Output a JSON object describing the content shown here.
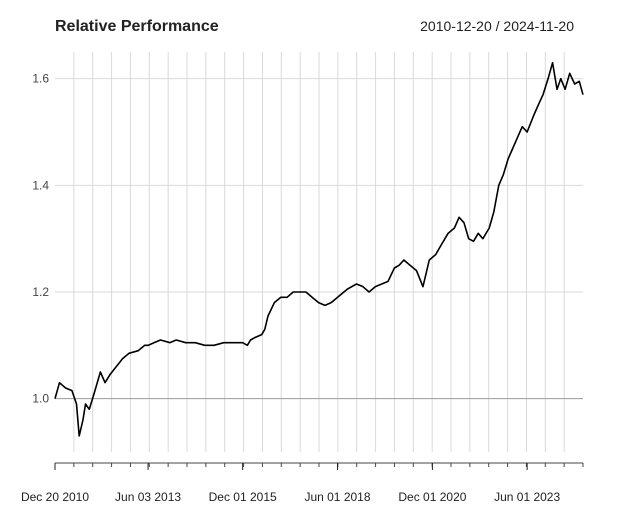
{
  "chart_data": {
    "type": "line",
    "title": "Relative Performance",
    "date_range_label": "2010-12-20 / 2024-11-20",
    "xlim": [
      "2010-12-20",
      "2024-11-20"
    ],
    "ylim": [
      0.9,
      1.65
    ],
    "y_ticks": [
      1.0,
      1.2,
      1.4,
      1.6
    ],
    "y_tick_labels": [
      "1.0",
      "1.2",
      "1.4",
      "1.6"
    ],
    "x_tick_labels": [
      "Dec 20 2010",
      "Jun 03 2013",
      "Dec 01 2015",
      "Jun 01 2018",
      "Dec 01 2020",
      "Jun 01 2023"
    ],
    "x_tick_dates": [
      "2010-12-20",
      "2013-06-03",
      "2015-12-01",
      "2018-06-01",
      "2020-12-01",
      "2023-06-01"
    ],
    "reference_line": 1.0,
    "grid": true,
    "line_color": "#000000",
    "series": [
      {
        "x": [
          "2010-12-20",
          "2011-02-01",
          "2011-04-01",
          "2011-06-01",
          "2011-07-15",
          "2011-08-10",
          "2011-09-15",
          "2011-10-10",
          "2011-11-15",
          "2012-01-01",
          "2012-03-01",
          "2012-04-15",
          "2012-06-01",
          "2012-08-01",
          "2012-10-01",
          "2012-12-01",
          "2013-03-01",
          "2013-05-01",
          "2013-06-03",
          "2013-08-01",
          "2013-10-01",
          "2014-01-01",
          "2014-03-01",
          "2014-06-01",
          "2014-09-01",
          "2014-12-01",
          "2015-03-01",
          "2015-06-01",
          "2015-09-01",
          "2015-12-01",
          "2016-01-15",
          "2016-02-15",
          "2016-04-01",
          "2016-06-01",
          "2016-07-01",
          "2016-08-01",
          "2016-10-01",
          "2016-12-01",
          "2017-02-01",
          "2017-04-01",
          "2017-06-01",
          "2017-08-01",
          "2017-10-01",
          "2017-12-01",
          "2018-02-01",
          "2018-04-01",
          "2018-06-01",
          "2018-09-01",
          "2018-12-01",
          "2019-02-01",
          "2019-04-01",
          "2019-06-01",
          "2019-08-01",
          "2019-10-01",
          "2019-12-01",
          "2020-01-15",
          "2020-03-01",
          "2020-05-01",
          "2020-07-01",
          "2020-09-01",
          "2020-11-01",
          "2021-01-01",
          "2021-03-01",
          "2021-05-01",
          "2021-07-01",
          "2021-08-15",
          "2021-10-01",
          "2021-11-15",
          "2022-01-01",
          "2022-02-15",
          "2022-04-01",
          "2022-06-01",
          "2022-07-15",
          "2022-09-01",
          "2022-10-15",
          "2022-12-01",
          "2023-01-15",
          "2023-03-01",
          "2023-04-15",
          "2023-06-01",
          "2023-08-01",
          "2023-09-15",
          "2023-11-01",
          "2023-12-20",
          "2024-02-01",
          "2024-03-15",
          "2024-04-20",
          "2024-06-01",
          "2024-07-15",
          "2024-09-01",
          "2024-10-15",
          "2024-11-20"
        ],
        "y": [
          1.0,
          1.03,
          1.02,
          1.015,
          0.99,
          0.93,
          0.96,
          0.99,
          0.98,
          1.01,
          1.05,
          1.03,
          1.045,
          1.06,
          1.075,
          1.085,
          1.09,
          1.1,
          1.1,
          1.105,
          1.11,
          1.105,
          1.11,
          1.105,
          1.105,
          1.1,
          1.1,
          1.105,
          1.105,
          1.105,
          1.1,
          1.11,
          1.115,
          1.12,
          1.13,
          1.155,
          1.18,
          1.19,
          1.19,
          1.2,
          1.2,
          1.2,
          1.19,
          1.18,
          1.175,
          1.18,
          1.19,
          1.205,
          1.215,
          1.21,
          1.2,
          1.21,
          1.215,
          1.22,
          1.245,
          1.25,
          1.26,
          1.25,
          1.24,
          1.21,
          1.26,
          1.27,
          1.29,
          1.31,
          1.32,
          1.34,
          1.33,
          1.3,
          1.295,
          1.31,
          1.3,
          1.32,
          1.35,
          1.4,
          1.42,
          1.45,
          1.47,
          1.49,
          1.51,
          1.5,
          1.53,
          1.55,
          1.57,
          1.6,
          1.63,
          1.58,
          1.6,
          1.58,
          1.61,
          1.59,
          1.595,
          1.57
        ]
      }
    ]
  }
}
